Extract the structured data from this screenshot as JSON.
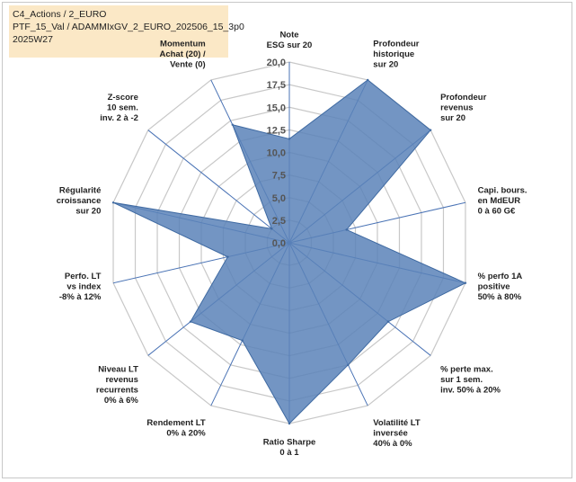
{
  "header": {
    "line1": "C4_Actions / 2_EURO",
    "line2": "PTF_15_Val / ADAMMIxGV_2_EURO_202506_15_3p0",
    "line3": "2025W27"
  },
  "colors": {
    "fill": "#5a83b8",
    "stroke": "#3f6aa2",
    "grid": "#c8c8c8",
    "spoke": "#4a73b5",
    "box": "#fbe8c6"
  },
  "chart_data": {
    "type": "radar",
    "rlim": [
      0,
      20
    ],
    "ticks": [
      "0,0",
      "2,5",
      "5,0",
      "7,5",
      "10,0",
      "12,5",
      "15,0",
      "17,5",
      "20,0"
    ],
    "grid": true,
    "axes": [
      {
        "label": [
          "Note",
          "ESG sur 20"
        ],
        "value": 11.5
      },
      {
        "label": [
          "Profondeur",
          "historique",
          "sur 20"
        ],
        "value": 20
      },
      {
        "label": [
          "Profondeur",
          "revenus",
          "sur 20"
        ],
        "value": 20
      },
      {
        "label": [
          "Capi. bours.",
          "en MdEUR",
          "0 à 60 G€"
        ],
        "value": 6.5
      },
      {
        "label": [
          "% perfo 1A",
          "positive",
          "50% à 80%"
        ],
        "value": 20
      },
      {
        "label": [
          "% perte max.",
          "sur 1 sem.",
          "inv. 50% à 20%"
        ],
        "value": 14
      },
      {
        "label": [
          "Volatilité LT",
          "inversée",
          "40% à 0%"
        ],
        "value": 15
      },
      {
        "label": [
          "Ratio Sharpe",
          "0 à 1"
        ],
        "value": 20
      },
      {
        "label": [
          "Rendement LT",
          "0% à 20%"
        ],
        "value": 12
      },
      {
        "label": [
          "Niveau LT",
          "revenus",
          "recurrents",
          "0% à 6%"
        ],
        "value": 14
      },
      {
        "label": [
          "Perfo. LT",
          "vs index",
          "-8% à 12%"
        ],
        "value": 7
      },
      {
        "label": [
          "Régularité",
          "croissance",
          "sur 20"
        ],
        "value": 20
      },
      {
        "label": [
          "Z-score",
          "10 sem.",
          "inv. 2 à -2"
        ],
        "value": 2.5
      },
      {
        "label": [
          "Momentum",
          "Achat (20) /",
          "Vente (0)"
        ],
        "value": 14.5
      }
    ]
  }
}
